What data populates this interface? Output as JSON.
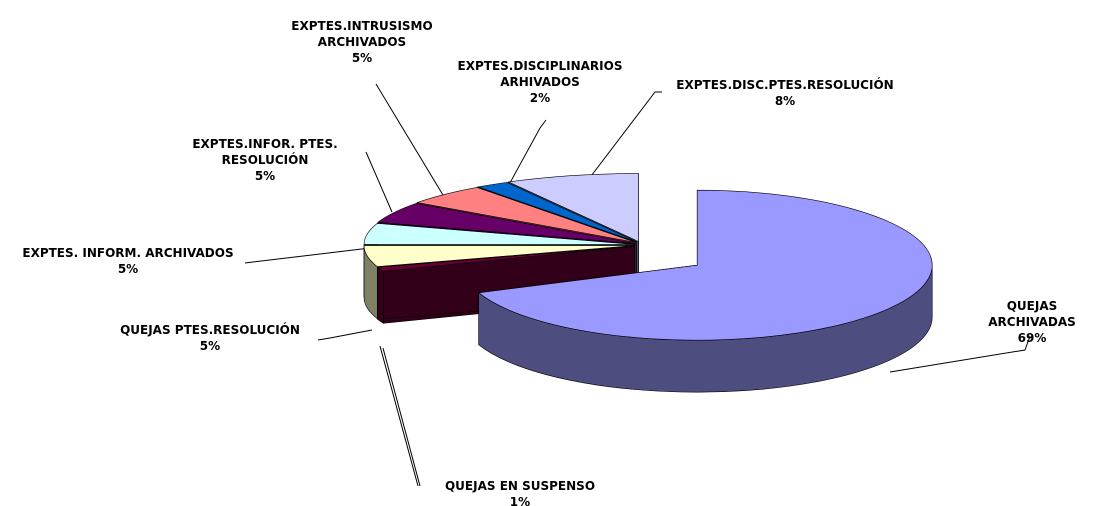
{
  "chart_data": {
    "type": "pie3d",
    "categories": [
      "QUEJAS ARCHIVADAS",
      "QUEJAS EN SUSPENSO",
      "QUEJAS PTES.RESOLUCIÓN",
      "EXPTES. INFORM. ARCHIVADOS",
      "EXPTES.INFOR. PTES.\nRESOLUCIÓN",
      "EXPTES.INTRUSISMO\nARCHIVADOS",
      "EXPTES.DISCIPLINARIOS\nARHIVADOS",
      "EXPTES.DISC.PTES.RESOLUCIÓN"
    ],
    "values": [
      69,
      1,
      5,
      5,
      5,
      5,
      2,
      8
    ],
    "value_labels": [
      "69%",
      "1%",
      "5%",
      "5%",
      "5%",
      "5%",
      "2%",
      "8%"
    ],
    "colors": [
      "#9999ff",
      "#660033",
      "#ffffcc",
      "#ccffff",
      "#660066",
      "#ff8080",
      "#0066cc",
      "#ccccff"
    ]
  }
}
